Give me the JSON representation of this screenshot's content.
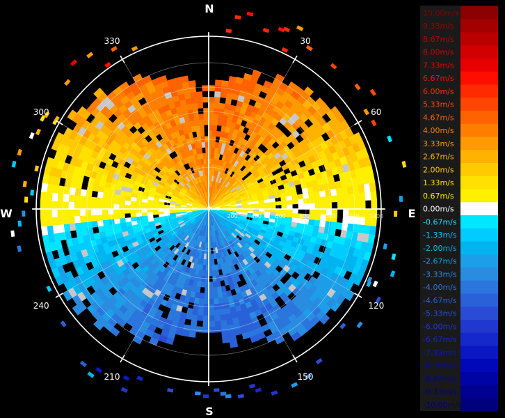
{
  "chart_data": {
    "type": "heatmap",
    "cardinals": [
      "N",
      "E",
      "S",
      "W"
    ],
    "bearing_labels": [
      "30",
      "60",
      "120",
      "150",
      "210",
      "240",
      "300",
      "330"
    ],
    "range_labels": [
      "200",
      "400",
      "600",
      "800",
      "1000",
      "1200",
      "1400"
    ],
    "legend": {
      "labels": [
        "10.00m/s",
        "9.33m/s",
        "8.67m/s",
        "8.00m/s",
        "7.33m/s",
        "6.67m/s",
        "6.00m/s",
        "5.33m/s",
        "4.67m/s",
        "4.00m/s",
        "3.33m/s",
        "2.67m/s",
        "2.00m/s",
        "1.33m/s",
        "0.67m/s",
        "0.00m/s",
        "-0.67m/s",
        "-1.33m/s",
        "-2.00m/s",
        "-2.67m/s",
        "-3.33m/s",
        "-4.00m/s",
        "-4.67m/s",
        "-5.33m/s",
        "-6.00m/s",
        "-6.67m/s",
        "-7.33m/s",
        "-8.00m/s",
        "-8.67m/s",
        "-9.33m/s",
        "-10.00m/s"
      ],
      "colors": [
        "#8b0000",
        "#a30000",
        "#bb0000",
        "#d20000",
        "#e80000",
        "#ff0e00",
        "#ff2a00",
        "#ff4600",
        "#ff6200",
        "#ff7e00",
        "#ff9a00",
        "#ffb200",
        "#ffca00",
        "#ffe000",
        "#fff000",
        "#ffffff",
        "#00e6ff",
        "#00ccff",
        "#00b4f0",
        "#1c9ee8",
        "#2a8ce0",
        "#2a76dc",
        "#2a60d8",
        "#2a4cd4",
        "#2038d0",
        "#1428cc",
        "#0a18c4",
        "#0008b8",
        "#0004a4",
        "#000090",
        "#00007c"
      ]
    },
    "velocity_range": [
      -10,
      10
    ],
    "velocity_units": "m/s"
  }
}
